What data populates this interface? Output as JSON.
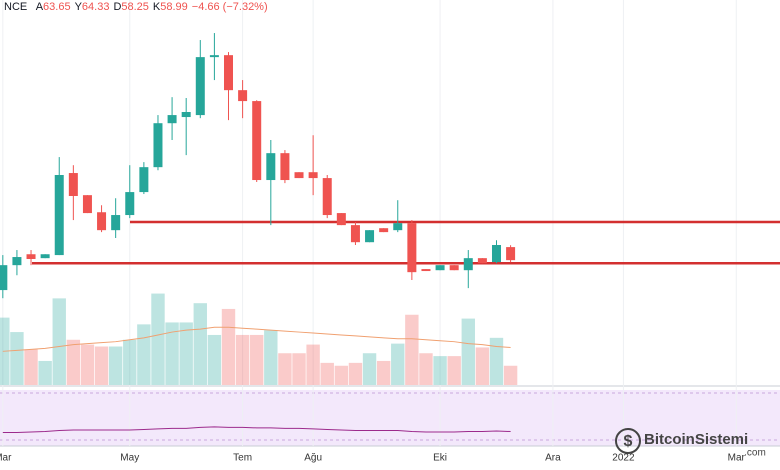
{
  "header": {
    "exchange": "NCE",
    "items": [
      {
        "key": "A",
        "value": "63.65"
      },
      {
        "key": "Y",
        "value": "64.33"
      },
      {
        "key": "D",
        "value": "58.25"
      },
      {
        "key": "K",
        "value": "58.99"
      }
    ],
    "change": "−4.66 (−7.32%)"
  },
  "watermark": {
    "name": "BitcoinSistemi",
    "domain": ".com"
  },
  "chart_data": {
    "type": "candlestick",
    "up_color": "#26a69a",
    "down_color": "#ef5350",
    "xlim": [
      -0.2,
      55.1
    ],
    "xticks": [
      {
        "value": 0,
        "label": "Mar"
      },
      {
        "value": 9,
        "label": "May"
      },
      {
        "value": 17,
        "label": "Tem"
      },
      {
        "value": 22,
        "label": "Ağu"
      },
      {
        "value": 31,
        "label": "Eki"
      },
      {
        "value": 39,
        "label": "Ara"
      },
      {
        "value": 44,
        "label": "2022"
      },
      {
        "value": 52,
        "label": "Mar"
      }
    ],
    "ylim": [
      14.4,
      151.9
    ],
    "open": [
      48.3,
      57.2,
      61.1,
      59.7,
      60.8,
      90.1,
      82.2,
      76.1,
      69.7,
      75.1,
      83.3,
      92.2,
      107.9,
      110.1,
      110.8,
      131.5,
      132.2,
      119.7,
      115.8,
      87.6,
      97.2,
      90.4,
      90.4,
      88.3,
      75.8,
      71.5,
      65.4,
      70.4,
      69.7,
      72.2,
      55.8,
      55.4,
      57.2,
      55.4,
      59.7,
      58.3,
      63.65
    ],
    "high": [
      60.8,
      62.6,
      62.6,
      61.1,
      95.8,
      92.9,
      82.2,
      78.6,
      81.1,
      92.9,
      94,
      110.8,
      117.2,
      116.9,
      137.6,
      140.1,
      133.3,
      123.3,
      116.1,
      101.9,
      98.3,
      90.4,
      103.6,
      89.4,
      75.8,
      72.6,
      69.7,
      70.4,
      80.4,
      73.3,
      55.8,
      57.2,
      57.2,
      62.6,
      59.7,
      66.1,
      64.33
    ],
    "low": [
      45.4,
      53.6,
      57.2,
      59.7,
      60.8,
      73.3,
      75.8,
      69,
      66.9,
      74,
      82.6,
      91.1,
      101.9,
      96.5,
      109.7,
      123.3,
      109,
      109.7,
      86.9,
      71.5,
      86.5,
      88.3,
      82.2,
      74,
      71.5,
      64.4,
      65.4,
      69,
      69,
      51.9,
      55.1,
      55.4,
      55.4,
      49,
      57.9,
      57.9,
      58.25
    ],
    "close": [
      57.2,
      60.1,
      59.4,
      61.1,
      89.4,
      81.9,
      75.8,
      69.7,
      75.1,
      83.3,
      92.2,
      107.9,
      110.8,
      111.9,
      131.5,
      132.2,
      119.7,
      115.8,
      87.6,
      97.2,
      87.6,
      88.3,
      88.3,
      75.1,
      71.5,
      65.4,
      69.7,
      69,
      72.2,
      54.7,
      55.1,
      57.2,
      55.4,
      59.7,
      57.9,
      64.4,
      58.99
    ],
    "levels": [
      72.6,
      57.9
    ],
    "level_color": "#d32f2f",
    "volume_ylim": [
      0,
      400
    ],
    "volume": [
      70,
      55,
      37,
      25,
      90,
      47,
      42,
      40,
      40,
      47,
      63,
      95,
      65,
      65,
      85,
      52,
      79,
      52,
      52,
      57,
      33,
      33,
      42,
      23,
      20,
      23,
      33,
      25,
      43,
      73,
      33,
      30,
      30,
      69,
      39,
      49,
      20
    ],
    "volume_ma": [
      35,
      36,
      37,
      38,
      40,
      42,
      43,
      44,
      45,
      47,
      49,
      52,
      55,
      57,
      58,
      60,
      60,
      59,
      58,
      57,
      56,
      55,
      54,
      53,
      52,
      51,
      50,
      49,
      48,
      48,
      47,
      46,
      45,
      43,
      42,
      40,
      39
    ],
    "volume_ma_color": "#f0a070",
    "rsi_ylim": [
      0,
      100
    ],
    "rsi": [
      22,
      22,
      23,
      24,
      26,
      27,
      27,
      27,
      27,
      27,
      28,
      29,
      30,
      30,
      32,
      33,
      32,
      32,
      31,
      31,
      30,
      30,
      29,
      28,
      27,
      26,
      26,
      26,
      26,
      24,
      23,
      23,
      23,
      24,
      24,
      25,
      24
    ],
    "rsi_color": "#9c2a8c"
  }
}
